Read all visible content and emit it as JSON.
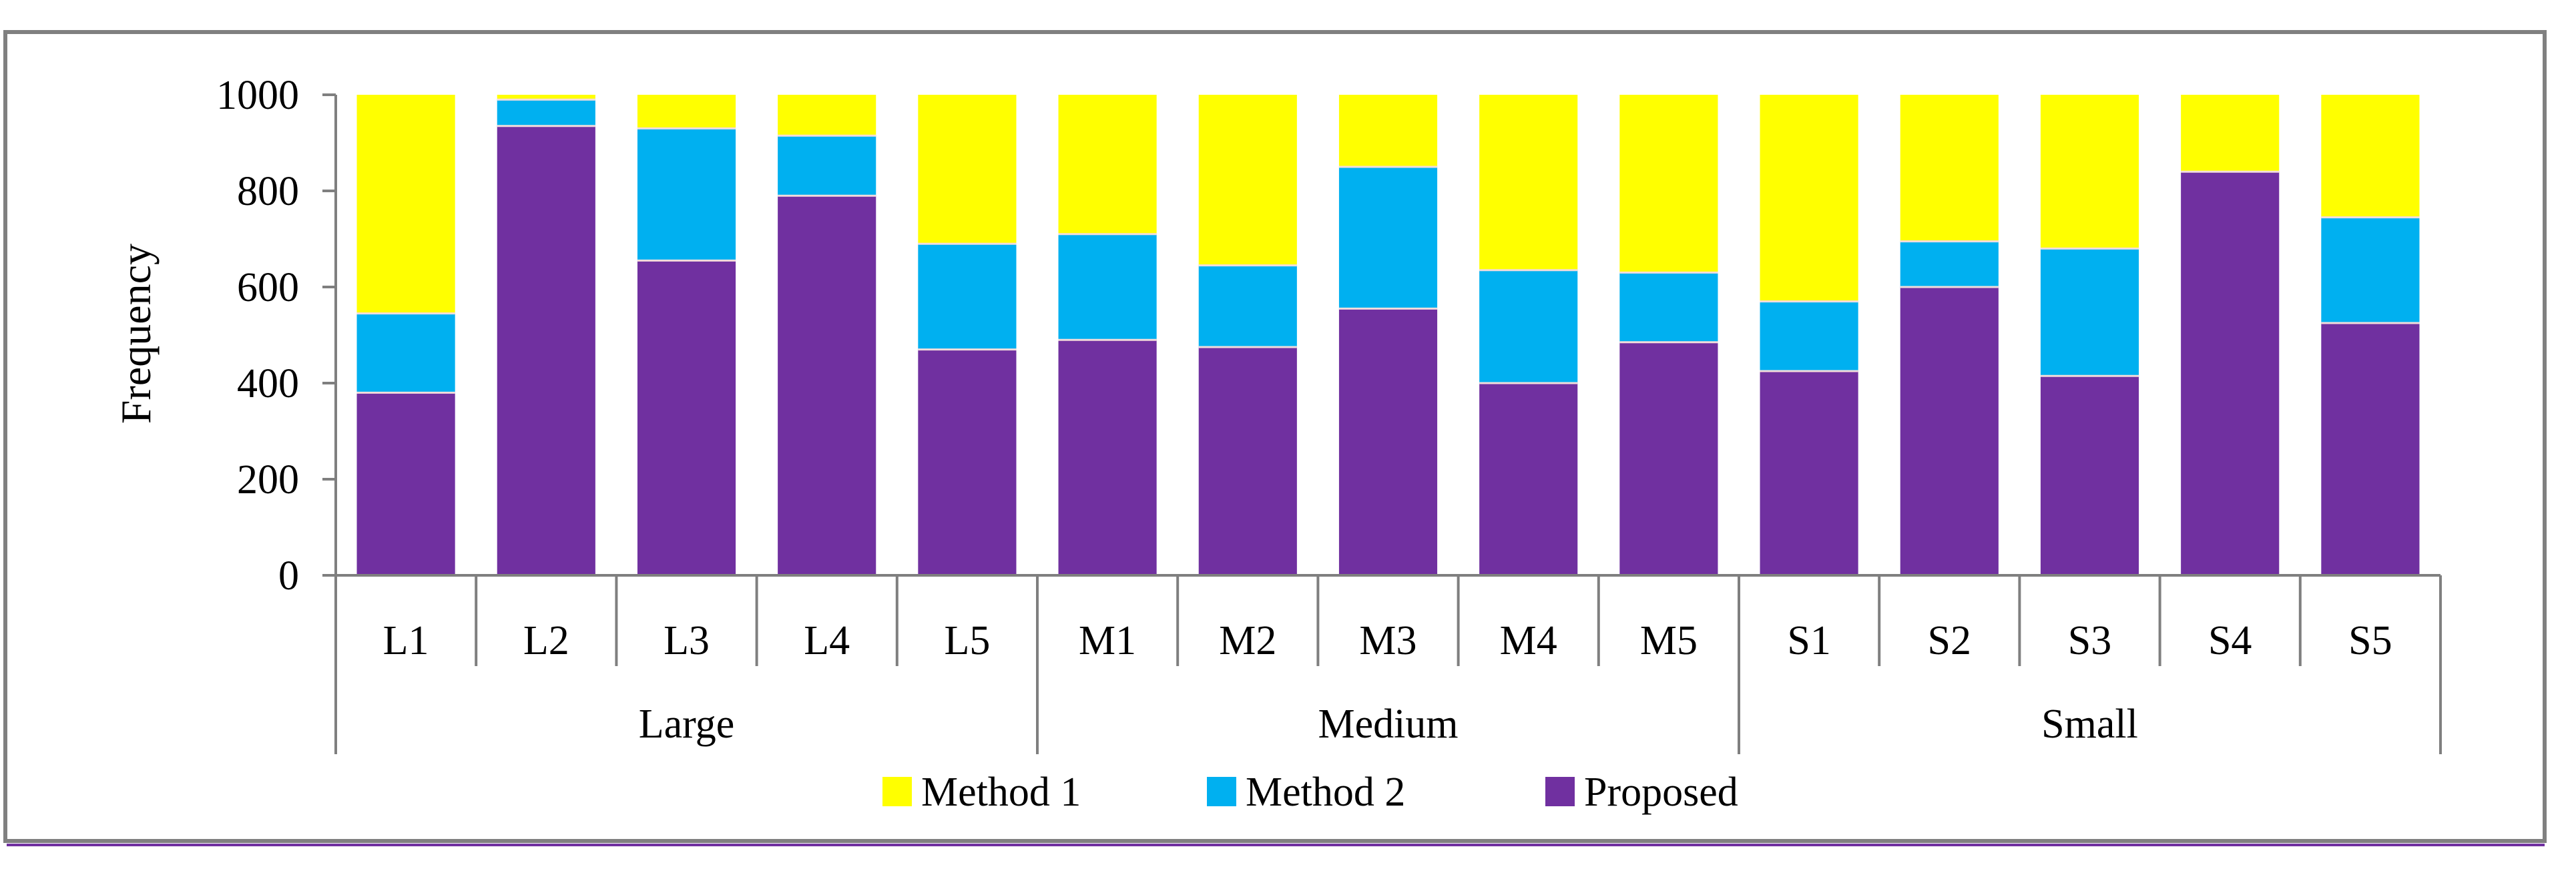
{
  "chart_data": {
    "type": "bar",
    "stacked": true,
    "title": "",
    "xlabel": "",
    "ylabel": "Frequency",
    "ylim": [
      0,
      1000
    ],
    "yticks": [
      0,
      200,
      400,
      600,
      800,
      1000
    ],
    "grid": false,
    "legend_position": "bottom",
    "categories": [
      "L1",
      "L2",
      "L3",
      "L4",
      "L5",
      "M1",
      "M2",
      "M3",
      "M4",
      "M5",
      "S1",
      "S2",
      "S3",
      "S4",
      "S5"
    ],
    "groups": [
      {
        "name": "Large",
        "categories": [
          "L1",
          "L2",
          "L3",
          "L4",
          "L5"
        ]
      },
      {
        "name": "Medium",
        "categories": [
          "M1",
          "M2",
          "M3",
          "M4",
          "M5"
        ]
      },
      {
        "name": "Small",
        "categories": [
          "S1",
          "S2",
          "S3",
          "S4",
          "S5"
        ]
      }
    ],
    "series": [
      {
        "name": "Proposed",
        "color": "#7030a0",
        "values": [
          380,
          935,
          655,
          790,
          470,
          490,
          475,
          555,
          400,
          485,
          425,
          600,
          415,
          840,
          525
        ]
      },
      {
        "name": "Method 2",
        "color": "#00b0f0",
        "values": [
          165,
          55,
          275,
          125,
          220,
          220,
          170,
          295,
          235,
          145,
          145,
          95,
          265,
          0,
          220
        ]
      },
      {
        "name": "Method 1",
        "color": "#ffff00",
        "values": [
          455,
          10,
          70,
          85,
          310,
          290,
          355,
          150,
          365,
          370,
          430,
          305,
          320,
          160,
          255
        ]
      }
    ],
    "legend_order": [
      "Method 1",
      "Method 2",
      "Proposed"
    ]
  }
}
